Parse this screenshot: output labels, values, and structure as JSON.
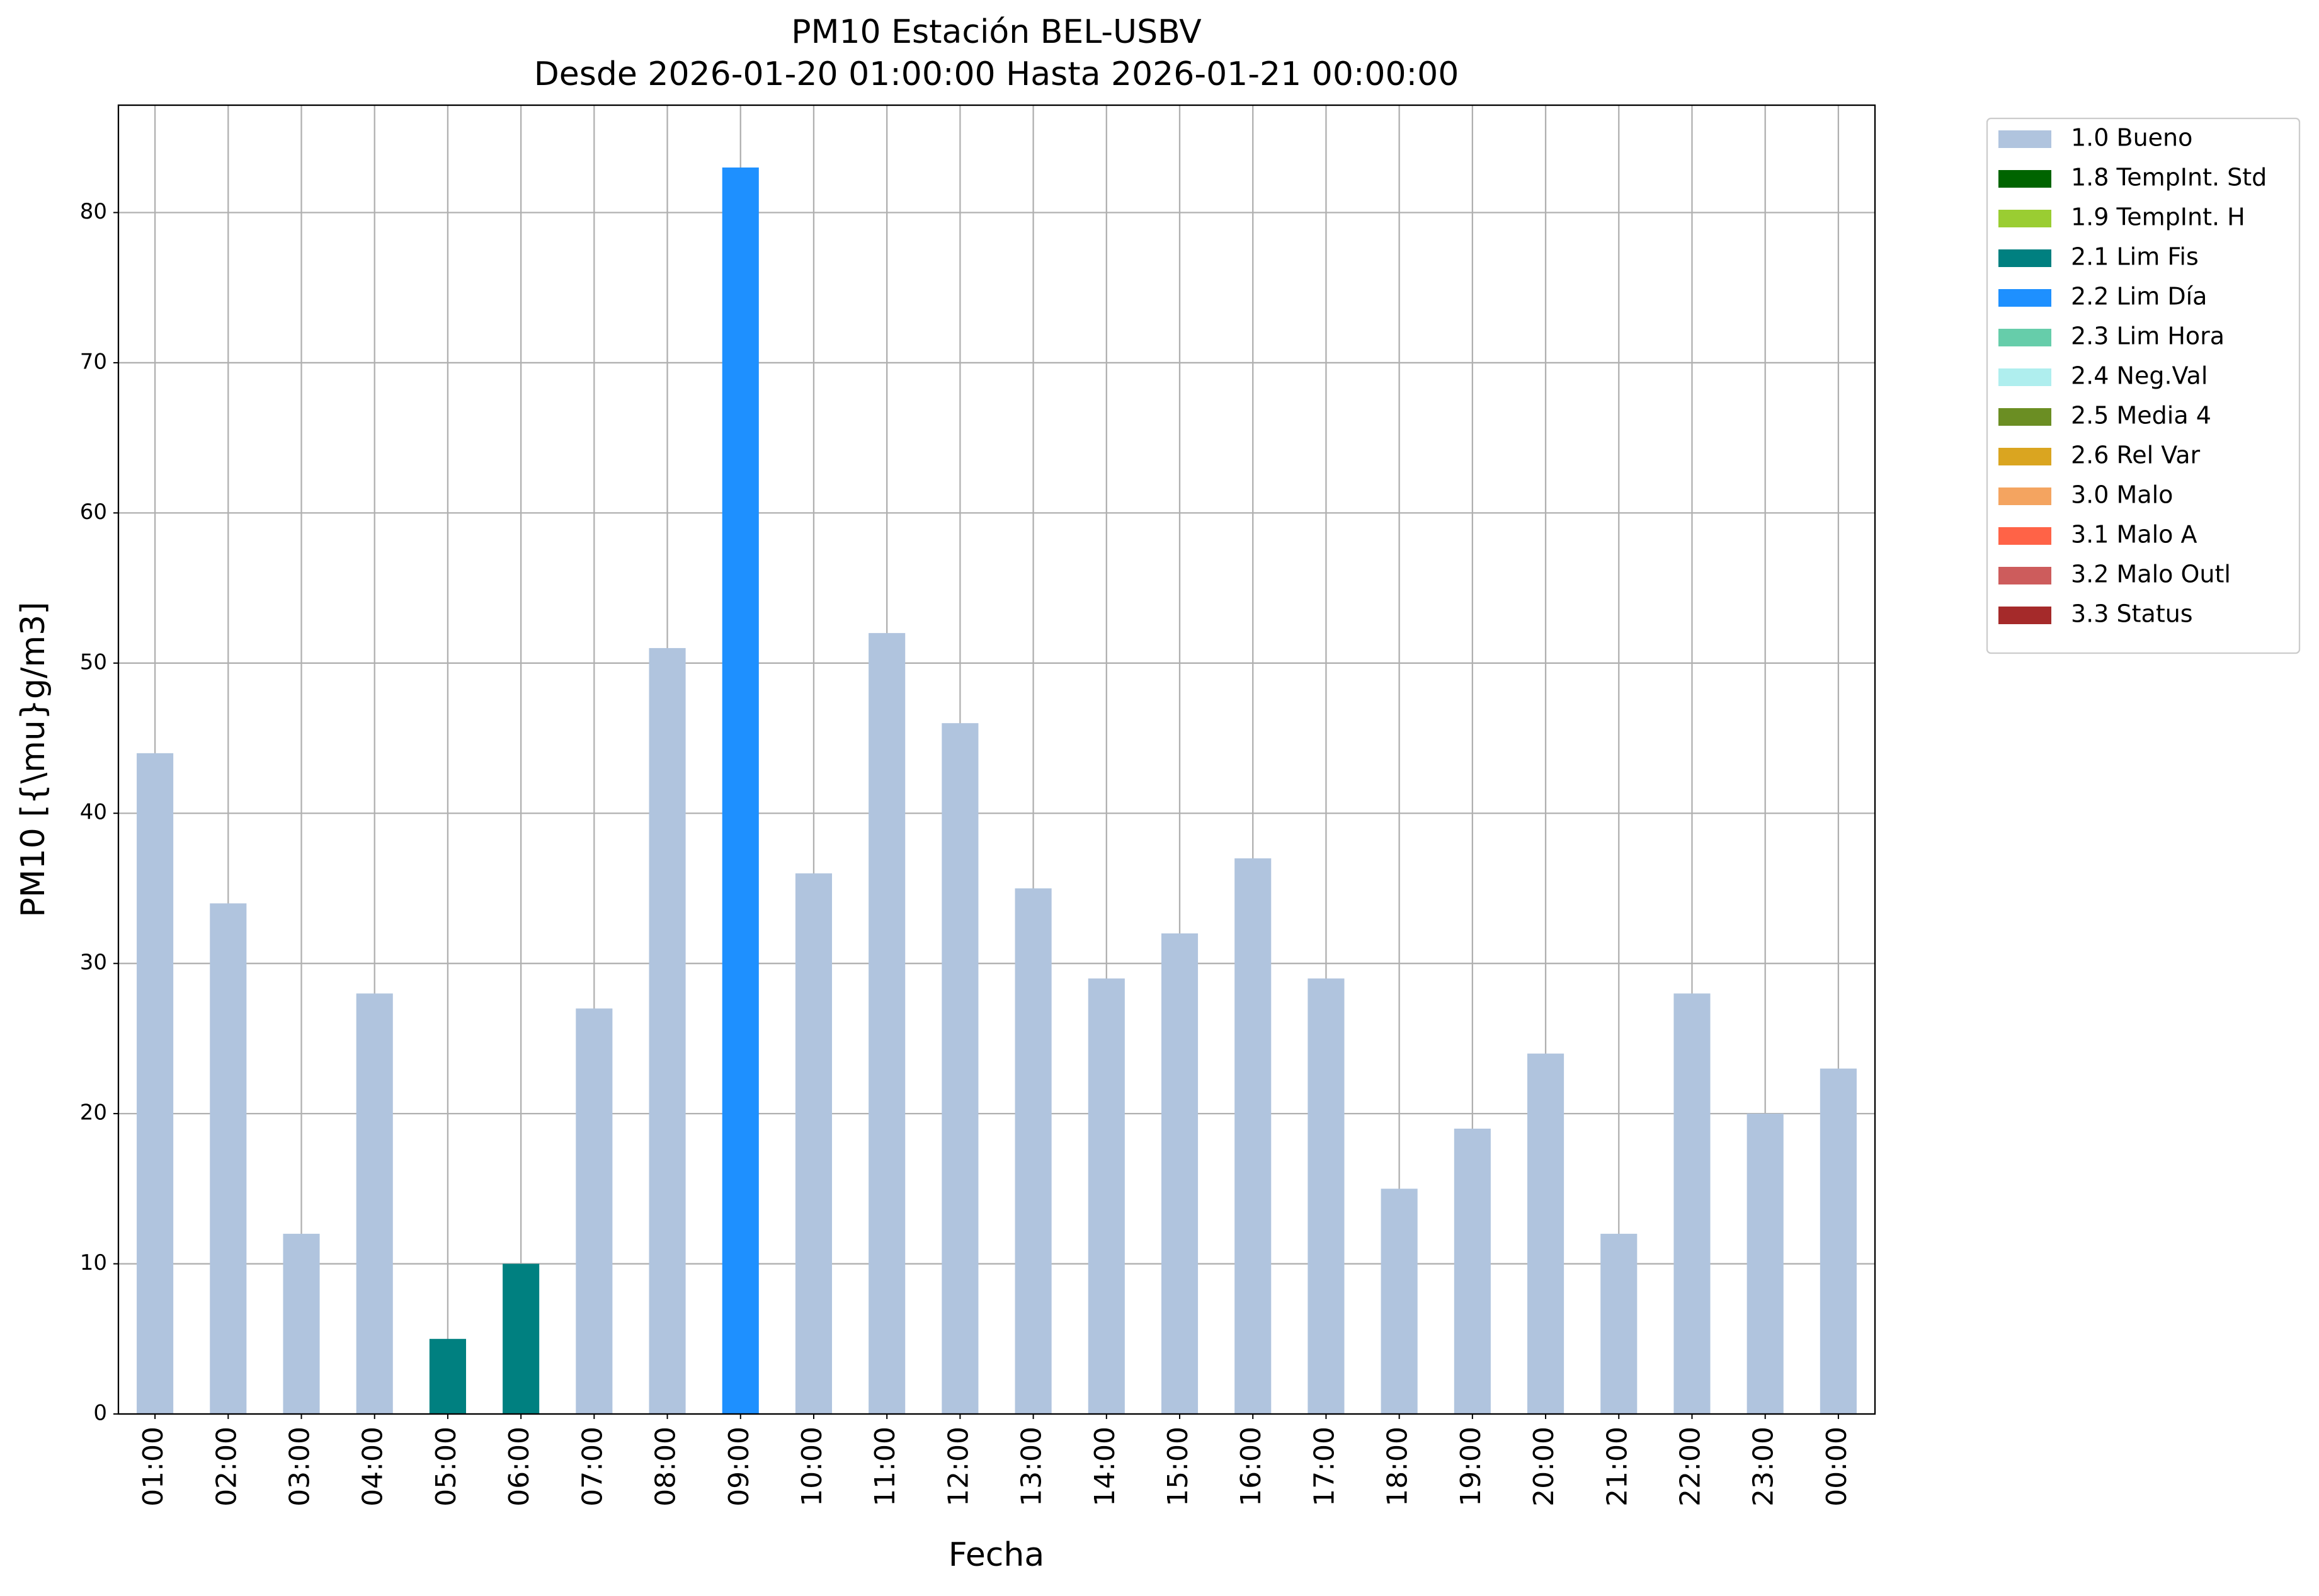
{
  "chart_data": {
    "type": "stacked-bar",
    "title": "PM10 Estación BEL-USBV",
    "subtitle": "Desde 2026-01-20 01:00:00 Hasta 2026-01-21 00:00:00",
    "x_label": "Fecha",
    "y_label": "PM10 [{\\mu}g/m3]",
    "categories": [
      "01:00",
      "02:00",
      "03:00",
      "04:00",
      "05:00",
      "06:00",
      "07:00",
      "08:00",
      "09:00",
      "10:00",
      "11:00",
      "12:00",
      "13:00",
      "14:00",
      "15:00",
      "16:00",
      "17:00",
      "18:00",
      "19:00",
      "20:00",
      "21:00",
      "22:00",
      "23:00",
      "00:00"
    ],
    "series": [
      {
        "name": "1.0 Bueno",
        "color": "#b0c4de",
        "values": [
          44,
          34,
          12,
          28,
          null,
          null,
          27,
          51,
          null,
          36,
          52,
          46,
          35,
          29,
          32,
          37,
          29,
          15,
          19,
          24,
          12,
          28,
          20,
          23
        ]
      },
      {
        "name": "1.8 TempInt. Std",
        "color": "#006400",
        "values": [
          null,
          null,
          null,
          null,
          null,
          null,
          null,
          null,
          null,
          null,
          null,
          null,
          null,
          null,
          null,
          null,
          null,
          null,
          null,
          null,
          null,
          null,
          null,
          null
        ]
      },
      {
        "name": "1.9 TempInt. H",
        "color": "#9acd32",
        "values": [
          null,
          null,
          null,
          null,
          null,
          null,
          null,
          null,
          null,
          null,
          null,
          null,
          null,
          null,
          null,
          null,
          null,
          null,
          null,
          null,
          null,
          null,
          null,
          null
        ]
      },
      {
        "name": "2.1 Lim Fis",
        "color": "#008080",
        "values": [
          null,
          null,
          null,
          null,
          5,
          10,
          null,
          null,
          null,
          null,
          null,
          null,
          null,
          null,
          null,
          null,
          null,
          null,
          null,
          null,
          null,
          null,
          null,
          null
        ]
      },
      {
        "name": "2.2 Lim Día",
        "color": "#1e90ff",
        "values": [
          null,
          null,
          null,
          null,
          null,
          null,
          null,
          null,
          83,
          null,
          null,
          null,
          null,
          null,
          null,
          null,
          null,
          null,
          null,
          null,
          null,
          null,
          null,
          null
        ]
      },
      {
        "name": "2.3 Lim Hora",
        "color": "#66cdaa",
        "values": [
          null,
          null,
          null,
          null,
          null,
          null,
          null,
          null,
          null,
          null,
          null,
          null,
          null,
          null,
          null,
          null,
          null,
          null,
          null,
          null,
          null,
          null,
          null,
          null
        ]
      },
      {
        "name": "2.4 Neg.Val",
        "color": "#afeeee",
        "values": [
          null,
          null,
          null,
          null,
          null,
          null,
          null,
          null,
          null,
          null,
          null,
          null,
          null,
          null,
          null,
          null,
          null,
          null,
          null,
          null,
          null,
          null,
          null,
          null
        ]
      },
      {
        "name": "2.5 Media 4",
        "color": "#6b8e23",
        "values": [
          null,
          null,
          null,
          null,
          null,
          null,
          null,
          null,
          null,
          null,
          null,
          null,
          null,
          null,
          null,
          null,
          null,
          null,
          null,
          null,
          null,
          null,
          null,
          null
        ]
      },
      {
        "name": "2.6 Rel Var",
        "color": "#daa520",
        "values": [
          null,
          null,
          null,
          null,
          null,
          null,
          null,
          null,
          null,
          null,
          null,
          null,
          null,
          null,
          null,
          null,
          null,
          null,
          null,
          null,
          null,
          null,
          null,
          null
        ]
      },
      {
        "name": "3.0 Malo",
        "color": "#f4a460",
        "values": [
          null,
          null,
          null,
          null,
          null,
          null,
          null,
          null,
          null,
          null,
          null,
          null,
          null,
          null,
          null,
          null,
          null,
          null,
          null,
          null,
          null,
          null,
          null,
          null
        ]
      },
      {
        "name": "3.1 Malo A",
        "color": "#ff6347",
        "values": [
          null,
          null,
          null,
          null,
          null,
          null,
          null,
          null,
          null,
          null,
          null,
          null,
          null,
          null,
          null,
          null,
          null,
          null,
          null,
          null,
          null,
          null,
          null,
          null
        ]
      },
      {
        "name": "3.2 Malo Outl",
        "color": "#cd5c5c",
        "values": [
          null,
          null,
          null,
          null,
          null,
          null,
          null,
          null,
          null,
          null,
          null,
          null,
          null,
          null,
          null,
          null,
          null,
          null,
          null,
          null,
          null,
          null,
          null,
          null
        ]
      },
      {
        "name": "3.3 Status",
        "color": "#a52a2a",
        "values": [
          null,
          null,
          null,
          null,
          null,
          null,
          null,
          null,
          null,
          null,
          null,
          null,
          null,
          null,
          null,
          null,
          null,
          null,
          null,
          null,
          null,
          null,
          null,
          null
        ]
      }
    ],
    "ylim": [
      0,
      87.15
    ],
    "yticks": [
      0,
      10,
      20,
      30,
      40,
      50,
      60,
      70,
      80
    ],
    "grid": true,
    "legend": "outside-upper-right"
  }
}
